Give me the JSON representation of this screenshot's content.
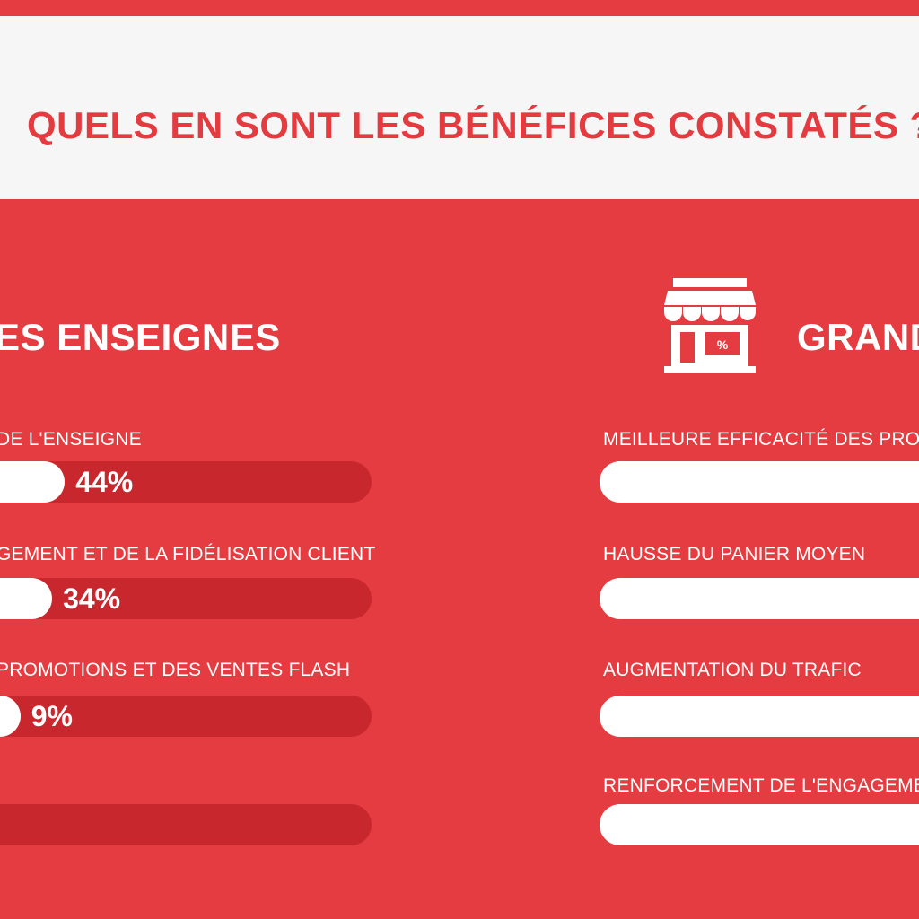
{
  "header": {
    "title": "QUELS EN SONT LES BÉNÉFICES CONSTATÉS ?"
  },
  "left_section": {
    "title": "ES ENSEIGNES",
    "items": [
      {
        "label": "DE L'ENSEIGNE",
        "value_label": "44%"
      },
      {
        "label": "GEMENT ET DE LA FIDÉLISATION CLIENT",
        "value_label": "34%"
      },
      {
        "label": "PROMOTIONS ET DES VENTES FLASH",
        "value_label": "9%"
      },
      {
        "label": "",
        "value_label": ""
      }
    ]
  },
  "right_section": {
    "title": "GRAND",
    "icon": "store-icon",
    "items": [
      {
        "label": "MEILLEURE EFFICACITÉ DES PRO"
      },
      {
        "label": "HAUSSE DU PANIER MOYEN"
      },
      {
        "label": "AUGMENTATION DU TRAFIC"
      },
      {
        "label": "RENFORCEMENT DE L'ENGAGEME"
      }
    ]
  },
  "chart_data": {
    "type": "bar",
    "orientation": "horizontal",
    "title": "QUELS EN SONT LES BÉNÉFICES CONSTATÉS ?",
    "categories": [
      "DE L'ENSEIGNE",
      "GEMENT ET DE LA FIDÉLISATION CLIENT",
      "PROMOTIONS ET DES VENTES FLASH",
      ""
    ],
    "values": [
      44,
      34,
      9,
      null
    ],
    "data_labels": [
      "44%",
      "34%",
      "9%",
      ""
    ],
    "colors": {
      "background": "#e43c40",
      "track": "#c8282d",
      "fill": "#ffffff",
      "title": "#e33b3f"
    }
  }
}
